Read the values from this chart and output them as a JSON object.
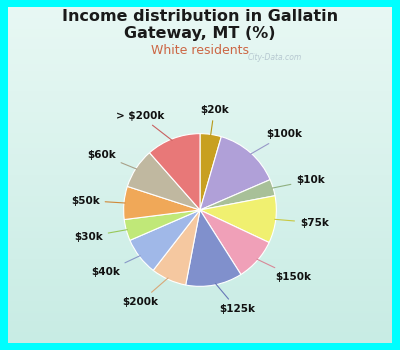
{
  "title_line1": "Income distribution in Gallatin",
  "title_line2": "Gateway, MT (%)",
  "subtitle": "White residents",
  "title_color": "#1a1a1a",
  "subtitle_color": "#cc6644",
  "outer_bg_color": "#00ffff",
  "inner_bg_top": "#f0faf8",
  "inner_bg_bottom": "#c8ede6",
  "labels": [
    "$20k",
    "$100k",
    "$10k",
    "$75k",
    "$150k",
    "$125k",
    "$200k",
    "$40k",
    "$30k",
    "$50k",
    "$60k",
    "> $200k"
  ],
  "values": [
    4.5,
    14.0,
    3.5,
    10.0,
    9.0,
    12.0,
    7.5,
    8.0,
    4.5,
    7.0,
    8.5,
    11.5
  ],
  "colors": [
    "#c8a020",
    "#b0a0d8",
    "#a8c098",
    "#f0f070",
    "#f0a0b8",
    "#8090cc",
    "#f5c8a0",
    "#a0b8e8",
    "#c0e878",
    "#f0a858",
    "#c0b8a0",
    "#e87878"
  ],
  "label_fontsize": 7.5,
  "title_fontsize": 11.5,
  "subtitle_fontsize": 9,
  "startangle": 90,
  "wedge_linewidth": 0.8,
  "wedge_edgecolor": "#ffffff",
  "watermark_text": "City-Data.com",
  "watermark_color": "#99aabb",
  "watermark_alpha": 0.6
}
